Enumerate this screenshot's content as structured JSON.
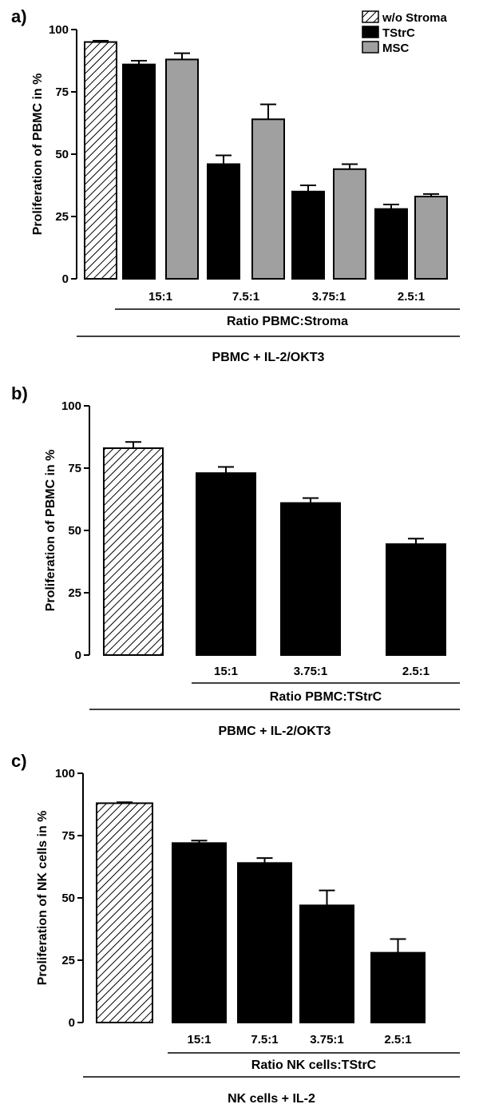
{
  "colors": {
    "tstrc": "#000000",
    "msc": "#a0a0a0",
    "hatch": "#000000"
  },
  "chart_data": [
    {
      "type": "bar",
      "panel_label": "a)",
      "ylabel": "Proliferation of PBMC in %",
      "ylim": [
        0,
        100
      ],
      "yticks": [
        0,
        25,
        50,
        75,
        100
      ],
      "legend": {
        "position": "top-right",
        "entries": [
          "w/o Stroma",
          "TStrC",
          "MSC"
        ]
      },
      "control": {
        "name": "w/o Stroma",
        "value": 95,
        "error": 0.5
      },
      "categories": [
        "15:1",
        "7.5:1",
        "3.75:1",
        "2.5:1"
      ],
      "series": [
        {
          "name": "TStrC",
          "values": [
            86,
            46,
            35,
            28
          ],
          "errors": [
            1.5,
            3.5,
            2.5,
            1.8
          ]
        },
        {
          "name": "MSC",
          "values": [
            88,
            64,
            44,
            33
          ],
          "errors": [
            2.5,
            6,
            2,
            1
          ]
        }
      ],
      "group_label": "Ratio PBMC:Stroma",
      "condition_label": "PBMC + IL-2/OKT3"
    },
    {
      "type": "bar",
      "panel_label": "b)",
      "ylabel": "Proliferation of PBMC in %",
      "ylim": [
        0,
        100
      ],
      "yticks": [
        0,
        25,
        50,
        75,
        100
      ],
      "control": {
        "name": "w/o Stroma",
        "value": 83,
        "error": 2.5
      },
      "categories": [
        "15:1",
        "3.75:1",
        "2.5:1"
      ],
      "series": [
        {
          "name": "TStrC",
          "values": [
            73,
            61,
            44.5
          ],
          "errors": [
            2.5,
            2,
            2.2
          ]
        }
      ],
      "group_label": "Ratio PBMC:TStrC",
      "condition_label": "PBMC + IL-2/OKT3"
    },
    {
      "type": "bar",
      "panel_label": "c)",
      "ylabel": "Proliferation of NK cells in %",
      "ylim": [
        0,
        100
      ],
      "yticks": [
        0,
        25,
        50,
        75,
        100
      ],
      "control": {
        "name": "w/o Stroma",
        "value": 88,
        "error": 0.4
      },
      "categories": [
        "15:1",
        "7.5:1",
        "3.75:1",
        "2.5:1"
      ],
      "series": [
        {
          "name": "TStrC",
          "values": [
            72,
            64,
            47,
            28
          ],
          "errors": [
            1,
            2,
            6,
            5.5
          ]
        }
      ],
      "group_label": "Ratio NK cells:TStrC",
      "condition_label": "NK cells + IL-2"
    }
  ]
}
